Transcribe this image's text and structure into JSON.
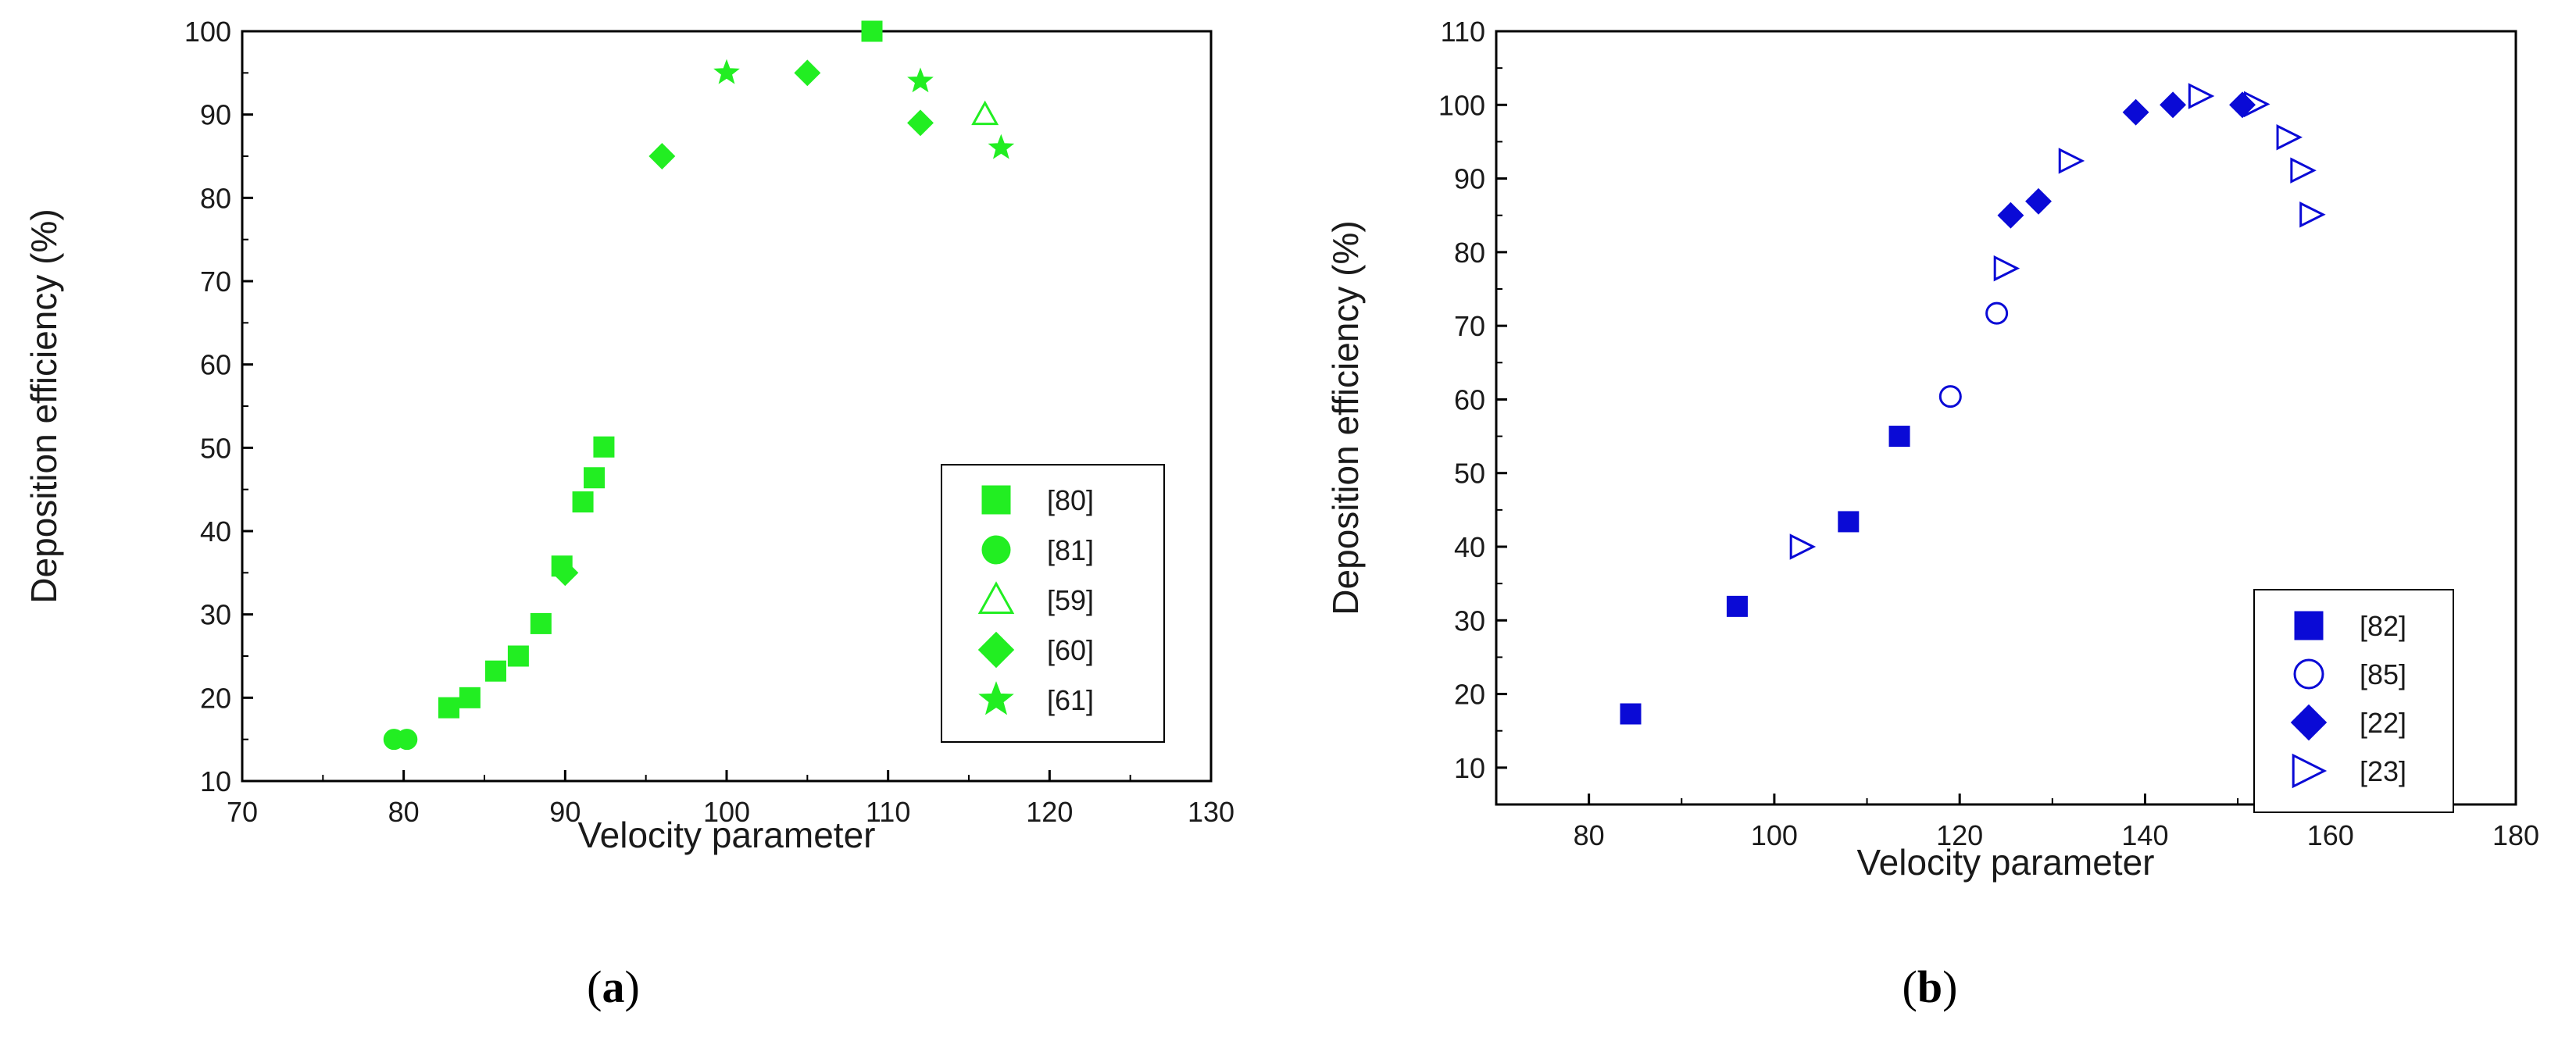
{
  "chart_data": [
    {
      "type": "scatter",
      "panel_label_open": "(",
      "panel_label_letter": "a",
      "panel_label_close": ")",
      "xlabel": "Velocity parameter",
      "ylabel": "Deposition efficiency (%)",
      "xlim": [
        70,
        130
      ],
      "ylim": [
        10,
        100
      ],
      "xticks": [
        70,
        80,
        90,
        100,
        110,
        120,
        130
      ],
      "yticks": [
        10,
        20,
        30,
        40,
        50,
        60,
        70,
        80,
        90,
        100
      ],
      "legend_position": "bottom-right",
      "color": "#22ee22",
      "series": [
        {
          "name": "[80]",
          "marker": "square-filled",
          "x": [
            82.8,
            84.1,
            85.7,
            87.1,
            88.5,
            89.8,
            91.1,
            91.8,
            92.4,
            109.0
          ],
          "y": [
            18.8,
            20.0,
            23.2,
            25.0,
            28.9,
            35.8,
            43.5,
            46.4,
            50.1,
            100.0
          ]
        },
        {
          "name": "[81]",
          "marker": "circle-filled",
          "x": [
            79.4,
            80.2
          ],
          "y": [
            15.0,
            15.0
          ]
        },
        {
          "name": "[59]",
          "marker": "triangle-open",
          "x": [
            116.0
          ],
          "y": [
            90.0
          ]
        },
        {
          "name": "[60]",
          "marker": "diamond-filled",
          "x": [
            90.0,
            96.0,
            105.0,
            112.0
          ],
          "y": [
            35.0,
            85.0,
            95.0,
            89.0
          ]
        },
        {
          "name": "[61]",
          "marker": "star-filled",
          "x": [
            100.0,
            112.0,
            117.0
          ],
          "y": [
            95.0,
            94.0,
            86.0
          ]
        }
      ]
    },
    {
      "type": "scatter",
      "panel_label_open": "(",
      "panel_label_letter": "b",
      "panel_label_close": ")",
      "xlabel": "Velocity parameter",
      "ylabel": "Deposition efficiency (%)",
      "xlim": [
        70,
        180
      ],
      "ylim": [
        5,
        110
      ],
      "xticks": [
        80,
        100,
        120,
        140,
        160,
        180
      ],
      "yticks": [
        10,
        20,
        30,
        40,
        50,
        60,
        70,
        80,
        90,
        100,
        110
      ],
      "legend_position": "bottom-right",
      "color": "#0a0ad6",
      "series": [
        {
          "name": "[82]",
          "marker": "square-filled",
          "x": [
            84.5,
            96.0,
            108.0,
            113.5
          ],
          "y": [
            17.3,
            31.9,
            43.4,
            55.0
          ]
        },
        {
          "name": "[85]",
          "marker": "circle-open",
          "x": [
            119.0,
            124.0
          ],
          "y": [
            60.4,
            71.7
          ]
        },
        {
          "name": "[22]",
          "marker": "diamond-filled",
          "x": [
            125.5,
            128.5,
            139.0,
            143.0,
            150.5
          ],
          "y": [
            85.0,
            86.9,
            99.0,
            100.0,
            100.0
          ]
        },
        {
          "name": "[23]",
          "marker": "triangle-right-open",
          "x": [
            103.0,
            125.0,
            132.0,
            146.0,
            152.0,
            155.5,
            157.0,
            158.0
          ],
          "y": [
            40.0,
            77.8,
            92.4,
            101.2,
            100.1,
            95.6,
            91.1,
            85.1
          ]
        }
      ]
    }
  ]
}
